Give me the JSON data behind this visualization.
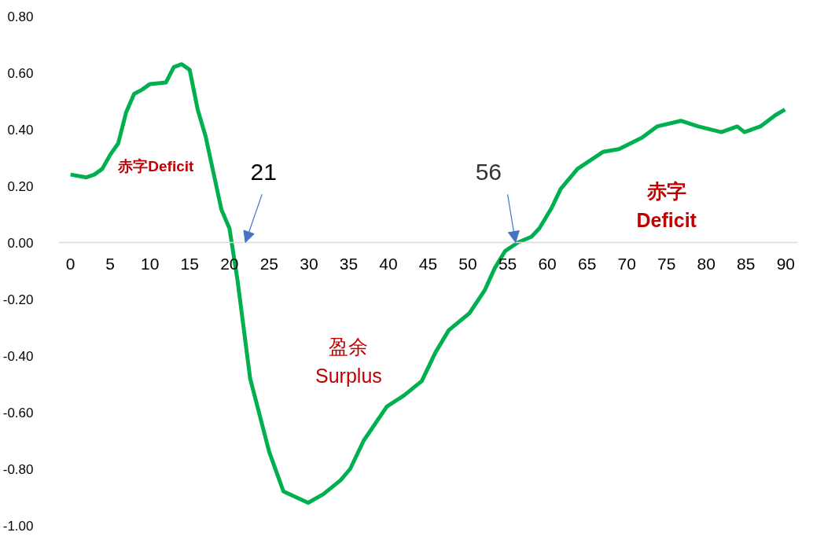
{
  "chart_data": {
    "type": "line",
    "x": [
      0,
      2,
      3,
      4,
      5,
      6,
      7,
      8,
      9,
      10,
      12,
      13,
      14,
      15,
      16,
      17,
      19,
      20,
      21,
      22.6,
      25,
      26.8,
      29.9,
      31.8,
      34,
      35.2,
      36.9,
      39.8,
      42,
      44.2,
      45.9,
      47.6,
      50.2,
      52.1,
      53.4,
      54.7,
      56.3,
      58,
      59,
      60.5,
      61.7,
      63.8,
      67,
      69,
      71.9,
      73.8,
      76.8,
      79,
      81.9,
      83.9,
      84.8,
      86.8,
      88.7,
      89.9
    ],
    "series": [
      {
        "color": "#00b050",
        "values": [
          0.24,
          0.23,
          0.24,
          0.26,
          0.31,
          0.35,
          0.46,
          0.525,
          0.54,
          0.56,
          0.565,
          0.62,
          0.63,
          0.61,
          0.47,
          0.375,
          0.115,
          0.05,
          -0.13,
          -0.48,
          -0.74,
          -0.88,
          -0.92,
          -0.89,
          -0.84,
          -0.8,
          -0.7,
          -0.58,
          -0.54,
          -0.49,
          -0.39,
          -0.31,
          -0.25,
          -0.17,
          -0.09,
          -0.03,
          0.0,
          0.02,
          0.05,
          0.12,
          0.19,
          0.26,
          0.32,
          0.33,
          0.37,
          0.41,
          0.43,
          0.41,
          0.39,
          0.41,
          0.39,
          0.41,
          0.45,
          0.47
        ]
      }
    ],
    "xlim": [
      -1.5,
      91.5
    ],
    "xticks": [
      0,
      5,
      10,
      15,
      20,
      25,
      30,
      35,
      40,
      45,
      50,
      55,
      60,
      65,
      70,
      75,
      80,
      85,
      90
    ],
    "ylim": [
      -1.0,
      0.8
    ],
    "yticks": [
      {
        "value": -1.0,
        "label": "-1.00"
      },
      {
        "value": -0.8,
        "label": "-0.80"
      },
      {
        "value": -0.6,
        "label": "-0.60"
      },
      {
        "value": -0.4,
        "label": "-0.40"
      },
      {
        "value": -0.2,
        "label": "-0.20"
      },
      {
        "value": 0,
        "label": "0.00"
      },
      {
        "value": 0.2,
        "label": "0.20"
      },
      {
        "value": 0.4,
        "label": "0.40"
      },
      {
        "value": 0.6,
        "label": "0.60"
      },
      {
        "value": 0.8,
        "label": "0.80"
      }
    ],
    "annotations": [
      "赤字Deficit",
      "21",
      {
        "text": "56",
        "x": 56,
        "y": 0
      },
      "盈余\nSurplus",
      "赤字\nDeficit"
    ],
    "grid": false,
    "marker": "none",
    "line_style": "solid"
  }
}
